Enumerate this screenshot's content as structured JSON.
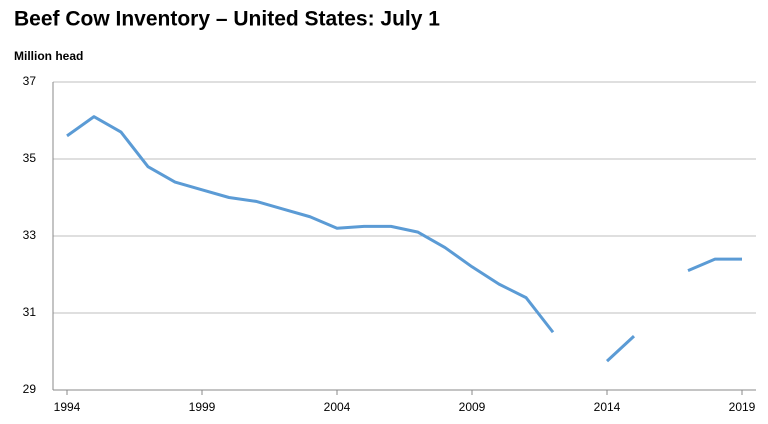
{
  "chart_data": {
    "type": "line",
    "title": "Beef Cow Inventory – United States: July 1",
    "y_label": "Million head",
    "x": [
      1994,
      1995,
      1996,
      1997,
      1998,
      1999,
      2000,
      2001,
      2002,
      2003,
      2004,
      2005,
      2006,
      2007,
      2008,
      2009,
      2010,
      2011,
      2012,
      2013,
      2014,
      2015,
      2016,
      2017,
      2018,
      2019
    ],
    "series": [
      {
        "color": "#5b9bd5",
        "values": [
          35.6,
          36.1,
          35.7,
          34.8,
          34.4,
          34.2,
          34.0,
          33.9,
          33.7,
          33.5,
          33.2,
          33.25,
          33.25,
          33.1,
          32.7,
          32.2,
          31.75,
          31.4,
          30.5,
          null,
          29.75,
          30.4,
          null,
          32.1,
          32.4,
          32.4
        ]
      }
    ],
    "xlim": [
      1994,
      2019
    ],
    "xticks": [
      1994,
      1999,
      2004,
      2009,
      2014,
      2019
    ],
    "ylim": [
      29,
      37
    ],
    "yticks": [
      29,
      31,
      33,
      35,
      37
    ],
    "grid": true
  }
}
